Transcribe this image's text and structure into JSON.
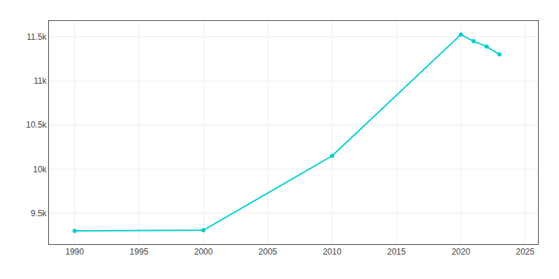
{
  "chart_data": {
    "type": "line",
    "x": [
      1990,
      2000,
      2010,
      2020,
      2021,
      2022,
      2023
    ],
    "values": [
      9300,
      9308,
      10150,
      11525,
      11450,
      11390,
      11300
    ],
    "color": "#00CED1",
    "marker": "circle",
    "xlim": [
      1988,
      2026
    ],
    "ylim": [
      9150,
      11680
    ],
    "xticks": [
      1990,
      1995,
      2000,
      2005,
      2010,
      2015,
      2020,
      2025
    ],
    "yticks": [
      {
        "value": 9500,
        "label": "9.5k"
      },
      {
        "value": 10000,
        "label": "10k"
      },
      {
        "value": 10500,
        "label": "10.5k"
      },
      {
        "value": 11000,
        "label": "11k"
      },
      {
        "value": 11500,
        "label": "11.5k"
      }
    ],
    "grid": true
  }
}
